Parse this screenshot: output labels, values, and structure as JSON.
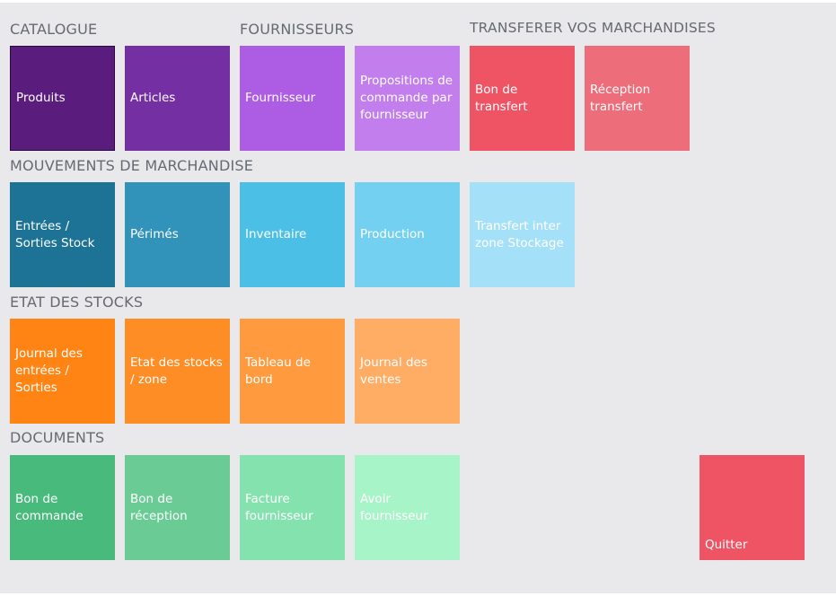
{
  "sections": {
    "catalogue": {
      "title": "CATALOGUE"
    },
    "fournisseurs": {
      "title": "FOURNISSEURS"
    },
    "transferer": {
      "title": "TRANSFERER VOS MARCHANDISES"
    },
    "mouvements": {
      "title": "MOUVEMENTS DE MARCHANDISE"
    },
    "etat": {
      "title": "ETAT DES STOCKS"
    },
    "documents": {
      "title": "DOCUMENTS"
    }
  },
  "tiles": {
    "produits": {
      "label": "Produits",
      "color": "#5b1d7d"
    },
    "articles": {
      "label": "Articles",
      "color": "#7430a3"
    },
    "fournisseur": {
      "label": "Fournisseur",
      "color": "#ac5de3"
    },
    "propositions": {
      "label": "Propositions de commande par fournisseur",
      "color": "#c27eec"
    },
    "bon_transfert": {
      "label": "Bon de transfert",
      "color": "#ef5465"
    },
    "reception_transfert": {
      "label": "Réception transfert",
      "color": "#ee6d7a"
    },
    "entrees_sorties": {
      "label": "Entrées / Sorties Stock",
      "color": "#1d7396"
    },
    "perimes": {
      "label": "Périmés",
      "color": "#3193b9"
    },
    "inventaire": {
      "label": "Inventaire",
      "color": "#4cbfe6"
    },
    "production": {
      "label": "Production",
      "color": "#74d0f0"
    },
    "transfert_inter_zone": {
      "label": "Transfert inter zone Stockage",
      "color": "#a4e0f7"
    },
    "journal_entrees": {
      "label": "Journal des entrées / Sorties",
      "color": "#ff8413"
    },
    "etat_stocks_zone": {
      "label": "Etat des stocks / zone",
      "color": "#ff8d26"
    },
    "tableau_bord": {
      "label": "Tableau de bord",
      "color": "#ff9a3e"
    },
    "journal_ventes": {
      "label": "Journal des ventes",
      "color": "#ffac64"
    },
    "bon_commande": {
      "label": "Bon de commande",
      "color": "#47ba7c"
    },
    "bon_reception": {
      "label": "Bon de réception",
      "color": "#6bcb95"
    },
    "facture_fournisseur": {
      "label": "Facture fournisseur",
      "color": "#84e2af"
    },
    "avoir_fournisseur": {
      "label": "Avoir fournisseur",
      "color": "#a8f4c9"
    },
    "quitter": {
      "label": "Quitter",
      "color": "#ef5465"
    }
  }
}
